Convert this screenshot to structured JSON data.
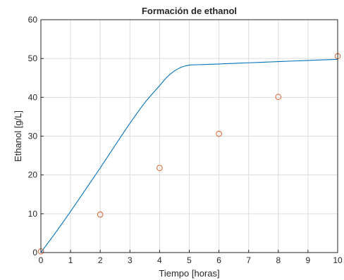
{
  "chart_data": {
    "type": "line",
    "title": "Formación de ethanol",
    "xlabel": "Tiempo [horas]",
    "ylabel": "Ethanol [g/L]",
    "xlim": [
      0,
      10
    ],
    "ylim": [
      0,
      60
    ],
    "xticks": [
      0,
      1,
      2,
      3,
      4,
      5,
      6,
      7,
      8,
      9,
      10
    ],
    "yticks": [
      0,
      10,
      20,
      30,
      40,
      50,
      60
    ],
    "grid": true,
    "series": [
      {
        "kind": "line",
        "color": "#0072BD",
        "x": [
          0,
          0.5,
          1,
          1.5,
          2,
          2.5,
          3,
          3.5,
          4,
          4.25,
          4.5,
          4.75,
          5,
          5.25,
          5.5,
          6,
          7,
          8,
          9,
          10
        ],
        "y": [
          0,
          5.2,
          10.6,
          16.2,
          21.8,
          27.6,
          33.3,
          38.6,
          43.0,
          45.2,
          46.8,
          47.8,
          48.3,
          48.4,
          48.45,
          48.6,
          48.9,
          49.2,
          49.5,
          49.8
        ]
      },
      {
        "kind": "scatter",
        "color": "#D95319",
        "marker": "circle-open",
        "x": [
          0,
          2,
          4,
          6,
          8,
          10
        ],
        "y": [
          0.3,
          9.8,
          21.8,
          30.6,
          40.1,
          50.6
        ]
      }
    ]
  }
}
